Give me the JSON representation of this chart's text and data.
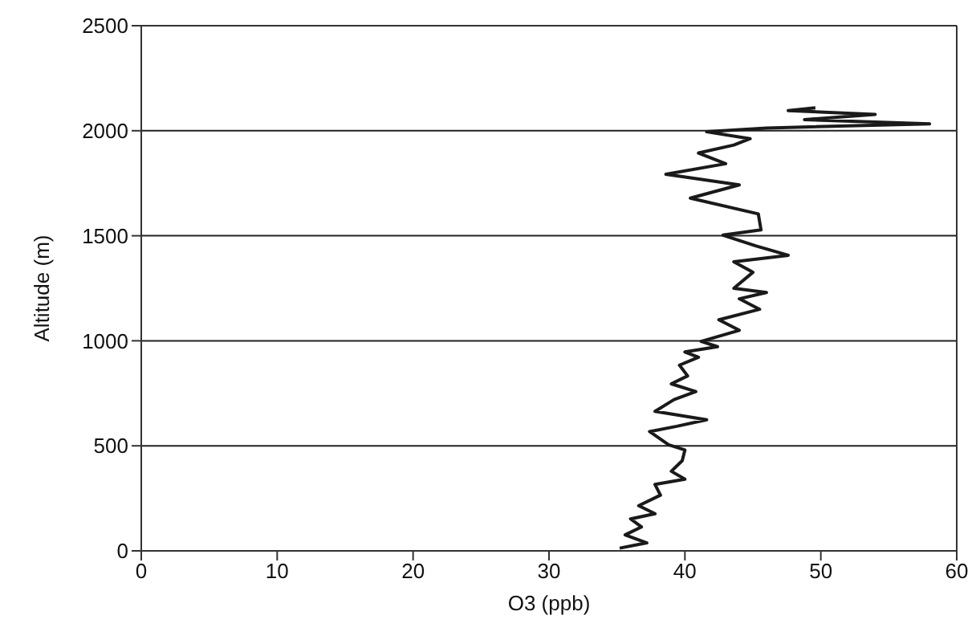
{
  "chart_data": {
    "type": "line",
    "xlabel": "O3 (ppb)",
    "ylabel": "Altitude (m)",
    "xlim": [
      0,
      60
    ],
    "xticks": [
      0,
      10,
      20,
      30,
      40,
      50,
      60
    ],
    "ylim": [
      0,
      2500
    ],
    "yticks": [
      0,
      500,
      1000,
      1500,
      2000,
      2500
    ],
    "grid": "y",
    "marker": "none",
    "line_style": "solid",
    "series": [
      {
        "color": "#1a1a1a",
        "x": [
          35.2,
          37.2,
          35.6,
          36.8,
          36.0,
          37.8,
          36.6,
          38.2,
          37.8,
          40.0,
          39.0,
          39.8,
          40.0,
          38.8,
          37.4,
          39.4,
          41.6,
          37.8,
          39.2,
          40.8,
          39.0,
          40.2,
          39.6,
          41.0,
          40.0,
          42.4,
          41.2,
          44.0,
          42.5,
          45.5,
          44.0,
          46.0,
          43.6,
          45.0,
          43.6,
          47.6,
          45.2,
          42.8,
          45.6,
          45.4,
          40.4,
          44.0,
          38.6,
          43.0,
          41.0,
          43.6,
          44.8,
          41.6,
          46.0,
          58.0,
          48.8,
          54.0,
          47.6,
          49.6
        ],
        "values": [
          13,
          38,
          76,
          114,
          152,
          177,
          215,
          265,
          316,
          341,
          379,
          429,
          480,
          505,
          568,
          593,
          624,
          664,
          720,
          758,
          795,
          833,
          884,
          922,
          947,
          972,
          997,
          1050,
          1100,
          1150,
          1200,
          1230,
          1250,
          1326,
          1376,
          1407,
          1452,
          1503,
          1528,
          1604,
          1679,
          1742,
          1793,
          1843,
          1894,
          1932,
          1962,
          1995,
          2013,
          2033,
          2053,
          2078,
          2096,
          2109
        ]
      }
    ]
  }
}
